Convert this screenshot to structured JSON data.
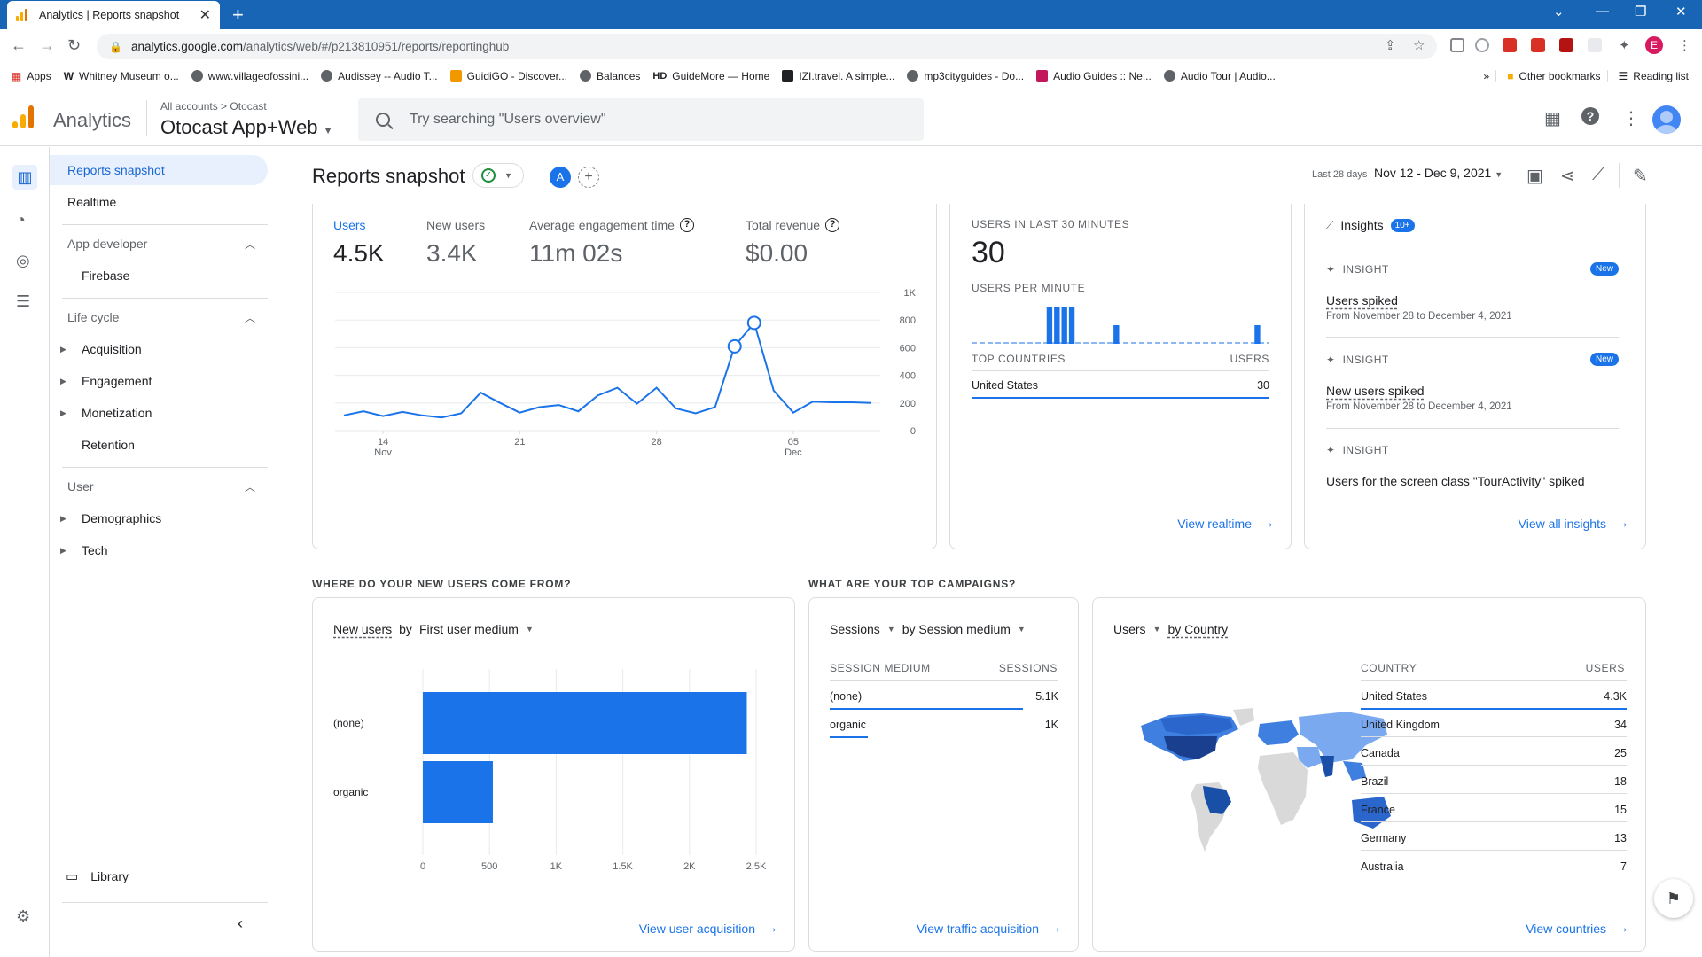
{
  "browser": {
    "tab_title": "Analytics | Reports snapshot",
    "url_domain": "analytics.google.com",
    "url_path": "/analytics/web/#/p213810951/reports/reportinghub",
    "bookmarks": [
      {
        "label": "Apps",
        "icon": "apps-grid-icon"
      },
      {
        "label": "Whitney Museum o...",
        "icon": "whitney-icon"
      },
      {
        "label": "www.villageofossini...",
        "icon": "globe-icon"
      },
      {
        "label": "Audissey -- Audio T...",
        "icon": "globe-icon"
      },
      {
        "label": "GuidiGO - Discover...",
        "icon": "guidigo-icon"
      },
      {
        "label": "Balances",
        "icon": "globe-icon"
      },
      {
        "label": "GuideMore — Home",
        "icon": "hd-icon"
      },
      {
        "label": "IZI.travel. A simple...",
        "icon": "izi-icon"
      },
      {
        "label": "mp3cityguides - Do...",
        "icon": "globe-icon"
      },
      {
        "label": "Audio Guides :: Ne...",
        "icon": "audio-guides-icon"
      },
      {
        "label": "Audio Tour | Audio...",
        "icon": "globe-icon"
      }
    ],
    "more_bookmarks": "»",
    "other_bookmarks": "Other bookmarks",
    "reading_list": "Reading list",
    "profile_initial": "E"
  },
  "header": {
    "product": "Analytics",
    "breadcrumb_all": "All accounts",
    "breadcrumb_sep": ">",
    "breadcrumb_account": "Otocast",
    "property": "Otocast App+Web",
    "search_placeholder": "Try searching \"Users overview\""
  },
  "sidebar": {
    "reports_snapshot": "Reports snapshot",
    "realtime": "Realtime",
    "app_developer": "App developer",
    "firebase": "Firebase",
    "life_cycle": "Life cycle",
    "acquisition": "Acquisition",
    "engagement": "Engagement",
    "monetization": "Monetization",
    "retention": "Retention",
    "user": "User",
    "demographics": "Demographics",
    "tech": "Tech",
    "library": "Library"
  },
  "page": {
    "title": "Reports snapshot",
    "compare_letter": "A",
    "date_label": "Last 28 days",
    "date_range": "Nov 12 - Dec 9, 2021"
  },
  "metrics": [
    {
      "label": "Users",
      "value": "4.5K"
    },
    {
      "label": "New users",
      "value": "3.4K"
    },
    {
      "label": "Average engagement time",
      "value": "11m 02s"
    },
    {
      "label": "Total revenue",
      "value": "$0.00"
    }
  ],
  "chart_data": [
    {
      "type": "line",
      "title": "",
      "series": [
        {
          "name": "Users",
          "x": [
            "Nov 12",
            "Nov 13",
            "Nov 14",
            "Nov 15",
            "Nov 16",
            "Nov 17",
            "Nov 18",
            "Nov 19",
            "Nov 20",
            "Nov 21",
            "Nov 22",
            "Nov 23",
            "Nov 24",
            "Nov 25",
            "Nov 26",
            "Nov 27",
            "Nov 28",
            "Nov 29",
            "Nov 30",
            "Dec 1",
            "Dec 2",
            "Dec 3",
            "Dec 4",
            "Dec 5",
            "Dec 6",
            "Dec 7",
            "Dec 8",
            "Dec 9"
          ],
          "values": [
            110,
            140,
            105,
            135,
            110,
            95,
            125,
            275,
            200,
            130,
            170,
            185,
            140,
            255,
            310,
            195,
            310,
            160,
            125,
            170,
            610,
            780,
            290,
            130,
            210,
            205,
            205,
            200
          ]
        }
      ],
      "x_ticks": [
        {
          "day": "14",
          "month": "Nov"
        },
        {
          "day": "21",
          "month": ""
        },
        {
          "day": "28",
          "month": ""
        },
        {
          "day": "05",
          "month": "Dec"
        }
      ],
      "y_ticks": [
        "1K",
        "800",
        "600",
        "400",
        "200",
        "0"
      ],
      "ylim": [
        0,
        1000
      ],
      "grid": true
    },
    {
      "type": "bar",
      "title": "",
      "categories": [
        "(none)",
        "organic"
      ],
      "values": [
        2430,
        525
      ],
      "x_ticks": [
        "0",
        "500",
        "1K",
        "1.5K",
        "2K",
        "2.5K"
      ],
      "xlim": [
        0,
        2500
      ],
      "orientation": "horizontal"
    },
    {
      "type": "bar",
      "title": "USERS PER MINUTE",
      "values": [
        0,
        0,
        0,
        0,
        0,
        0,
        0,
        0,
        0,
        0,
        2,
        2,
        2,
        2,
        0,
        0,
        0,
        0,
        0,
        1,
        0,
        0,
        0,
        0,
        0,
        0,
        0,
        0,
        0,
        0,
        0,
        0,
        0,
        0,
        0,
        0,
        0,
        0,
        1,
        0
      ],
      "ylim": [
        0,
        2
      ]
    }
  ],
  "realtime": {
    "heading": "USERS IN LAST 30 MINUTES",
    "value": "30",
    "per_minute_label": "USERS PER MINUTE",
    "col_country": "TOP COUNTRIES",
    "col_users": "USERS",
    "rows": [
      {
        "country": "United States",
        "users": "30"
      }
    ],
    "link": "View realtime"
  },
  "insights": {
    "title": "Insights",
    "count": "10+",
    "items": [
      {
        "kind": "INSIGHT",
        "badge": "New",
        "text": "Users spiked",
        "sub": "From November 28 to December 4, 2021"
      },
      {
        "kind": "INSIGHT",
        "badge": "New",
        "text": "New users spiked",
        "sub": "From November 28 to December 4, 2021"
      },
      {
        "kind": "INSIGHT",
        "badge": "",
        "text": "Users for the screen class \"TourActivity\" spiked",
        "sub": ""
      }
    ],
    "link": "View all insights"
  },
  "sections": {
    "new_users_q": "WHERE DO YOUR NEW USERS COME FROM?",
    "campaigns_q": "WHAT ARE YOUR TOP CAMPAIGNS?"
  },
  "acquisition_card": {
    "metric": "New users",
    "by": "by",
    "dimension": "First user medium",
    "link": "View user acquisition"
  },
  "campaign_card": {
    "metric": "Sessions",
    "dimension": "by Session medium",
    "col_medium": "SESSION MEDIUM",
    "col_sessions": "SESSIONS",
    "rows": [
      {
        "medium": "(none)",
        "sessions": "5.1K"
      },
      {
        "medium": "organic",
        "sessions": "1K"
      }
    ],
    "link": "View traffic acquisition"
  },
  "country_card": {
    "metric": "Users",
    "dimension": "by Country",
    "col_country": "COUNTRY",
    "col_users": "USERS",
    "rows": [
      {
        "country": "United States",
        "users": "4.3K"
      },
      {
        "country": "United Kingdom",
        "users": "34"
      },
      {
        "country": "Canada",
        "users": "25"
      },
      {
        "country": "Brazil",
        "users": "18"
      },
      {
        "country": "France",
        "users": "15"
      },
      {
        "country": "Germany",
        "users": "13"
      },
      {
        "country": "Australia",
        "users": "7"
      }
    ],
    "link": "View countries"
  },
  "colors": {
    "accent": "#1a73e8",
    "chrome_tabbar": "#1765b4",
    "map_dark": "#1a4fa8",
    "map_mid": "#3f7fe0",
    "map_light": "#7aa9f0",
    "map_none": "#d9d9d9"
  }
}
